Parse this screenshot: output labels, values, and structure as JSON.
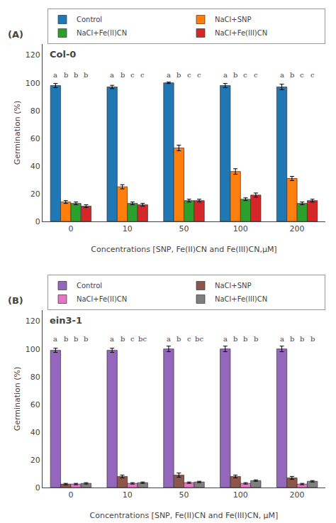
{
  "chart_data": [
    {
      "type": "bar",
      "title": "Col-0",
      "annotations": [
        "(A)"
      ],
      "xlabel": "Concentrations [SNP, Fe(II)CN and Fe(III)CN,μM]",
      "ylabel": "Germination (%)",
      "categories": [
        "0",
        "10",
        "50",
        "100",
        "200"
      ],
      "series": [
        {
          "name": "Control",
          "values": [
            98,
            97,
            100,
            98,
            97
          ],
          "errors": [
            1.5,
            1.2,
            0.5,
            1.5,
            2.0
          ],
          "annotations": [
            "a",
            "a",
            "a",
            "a",
            "a"
          ]
        },
        {
          "name": "NaCl+SNP",
          "values": [
            14,
            25,
            53,
            36,
            31
          ],
          "errors": [
            1.0,
            1.5,
            2.0,
            2.0,
            1.5
          ],
          "annotations": [
            "b",
            "b",
            "b",
            "b",
            "b"
          ]
        },
        {
          "name": "NaCl+Fe(II)CN",
          "values": [
            13,
            13,
            15,
            16,
            13
          ],
          "errors": [
            1.0,
            1.0,
            1.0,
            1.0,
            1.0
          ],
          "annotations": [
            "b",
            "c",
            "c",
            "c",
            "c"
          ]
        },
        {
          "name": "NaCl+Fe(III)CN",
          "values": [
            11,
            12,
            15,
            19,
            15
          ],
          "errors": [
            1.0,
            1.0,
            1.0,
            1.5,
            1.0
          ],
          "annotations": [
            "b",
            "c",
            "c",
            "c",
            "c"
          ]
        }
      ],
      "ylim": [
        0,
        128
      ],
      "yticks": [
        0,
        20,
        40,
        60,
        80,
        100,
        120
      ],
      "grid": false,
      "legend": "upper right"
    },
    {
      "type": "bar",
      "title": "ein3-1",
      "annotations": [
        "(B)"
      ],
      "xlabel": "Concentrations [SNP, Fe(II)CN and Fe(III)CN, μM]",
      "ylabel": "Germination (%)",
      "categories": [
        "0",
        "10",
        "50",
        "100",
        "200"
      ],
      "series": [
        {
          "name": "Control",
          "values": [
            99,
            99,
            100,
            100,
            100
          ],
          "errors": [
            1.5,
            1.5,
            2.0,
            2.0,
            2.0
          ],
          "annotations": [
            "a",
            "a",
            "a",
            "a",
            "a"
          ]
        },
        {
          "name": "NaCl+SNP",
          "values": [
            2.5,
            8,
            9,
            8,
            7
          ],
          "errors": [
            0.5,
            1.0,
            1.5,
            1.0,
            1.0
          ],
          "annotations": [
            "b",
            "b",
            "b",
            "b",
            "b"
          ]
        },
        {
          "name": "NaCl+Fe(II)CN",
          "values": [
            2.5,
            3,
            3.5,
            3,
            2.5
          ],
          "errors": [
            0.5,
            0.5,
            0.5,
            0.5,
            0.5
          ],
          "annotations": [
            "b",
            "c",
            "c",
            "b",
            "b"
          ]
        },
        {
          "name": "NaCl+Fe(III)CN",
          "values": [
            3,
            3.5,
            4,
            5,
            4.5
          ],
          "errors": [
            0.5,
            0.5,
            0.5,
            0.5,
            0.5
          ],
          "annotations": [
            "b",
            "bc",
            "bc",
            "b",
            "b"
          ]
        }
      ],
      "ylim": [
        0,
        128
      ],
      "yticks": [
        0,
        20,
        40,
        60,
        80,
        100,
        120
      ],
      "grid": false,
      "legend": "upper right"
    }
  ]
}
